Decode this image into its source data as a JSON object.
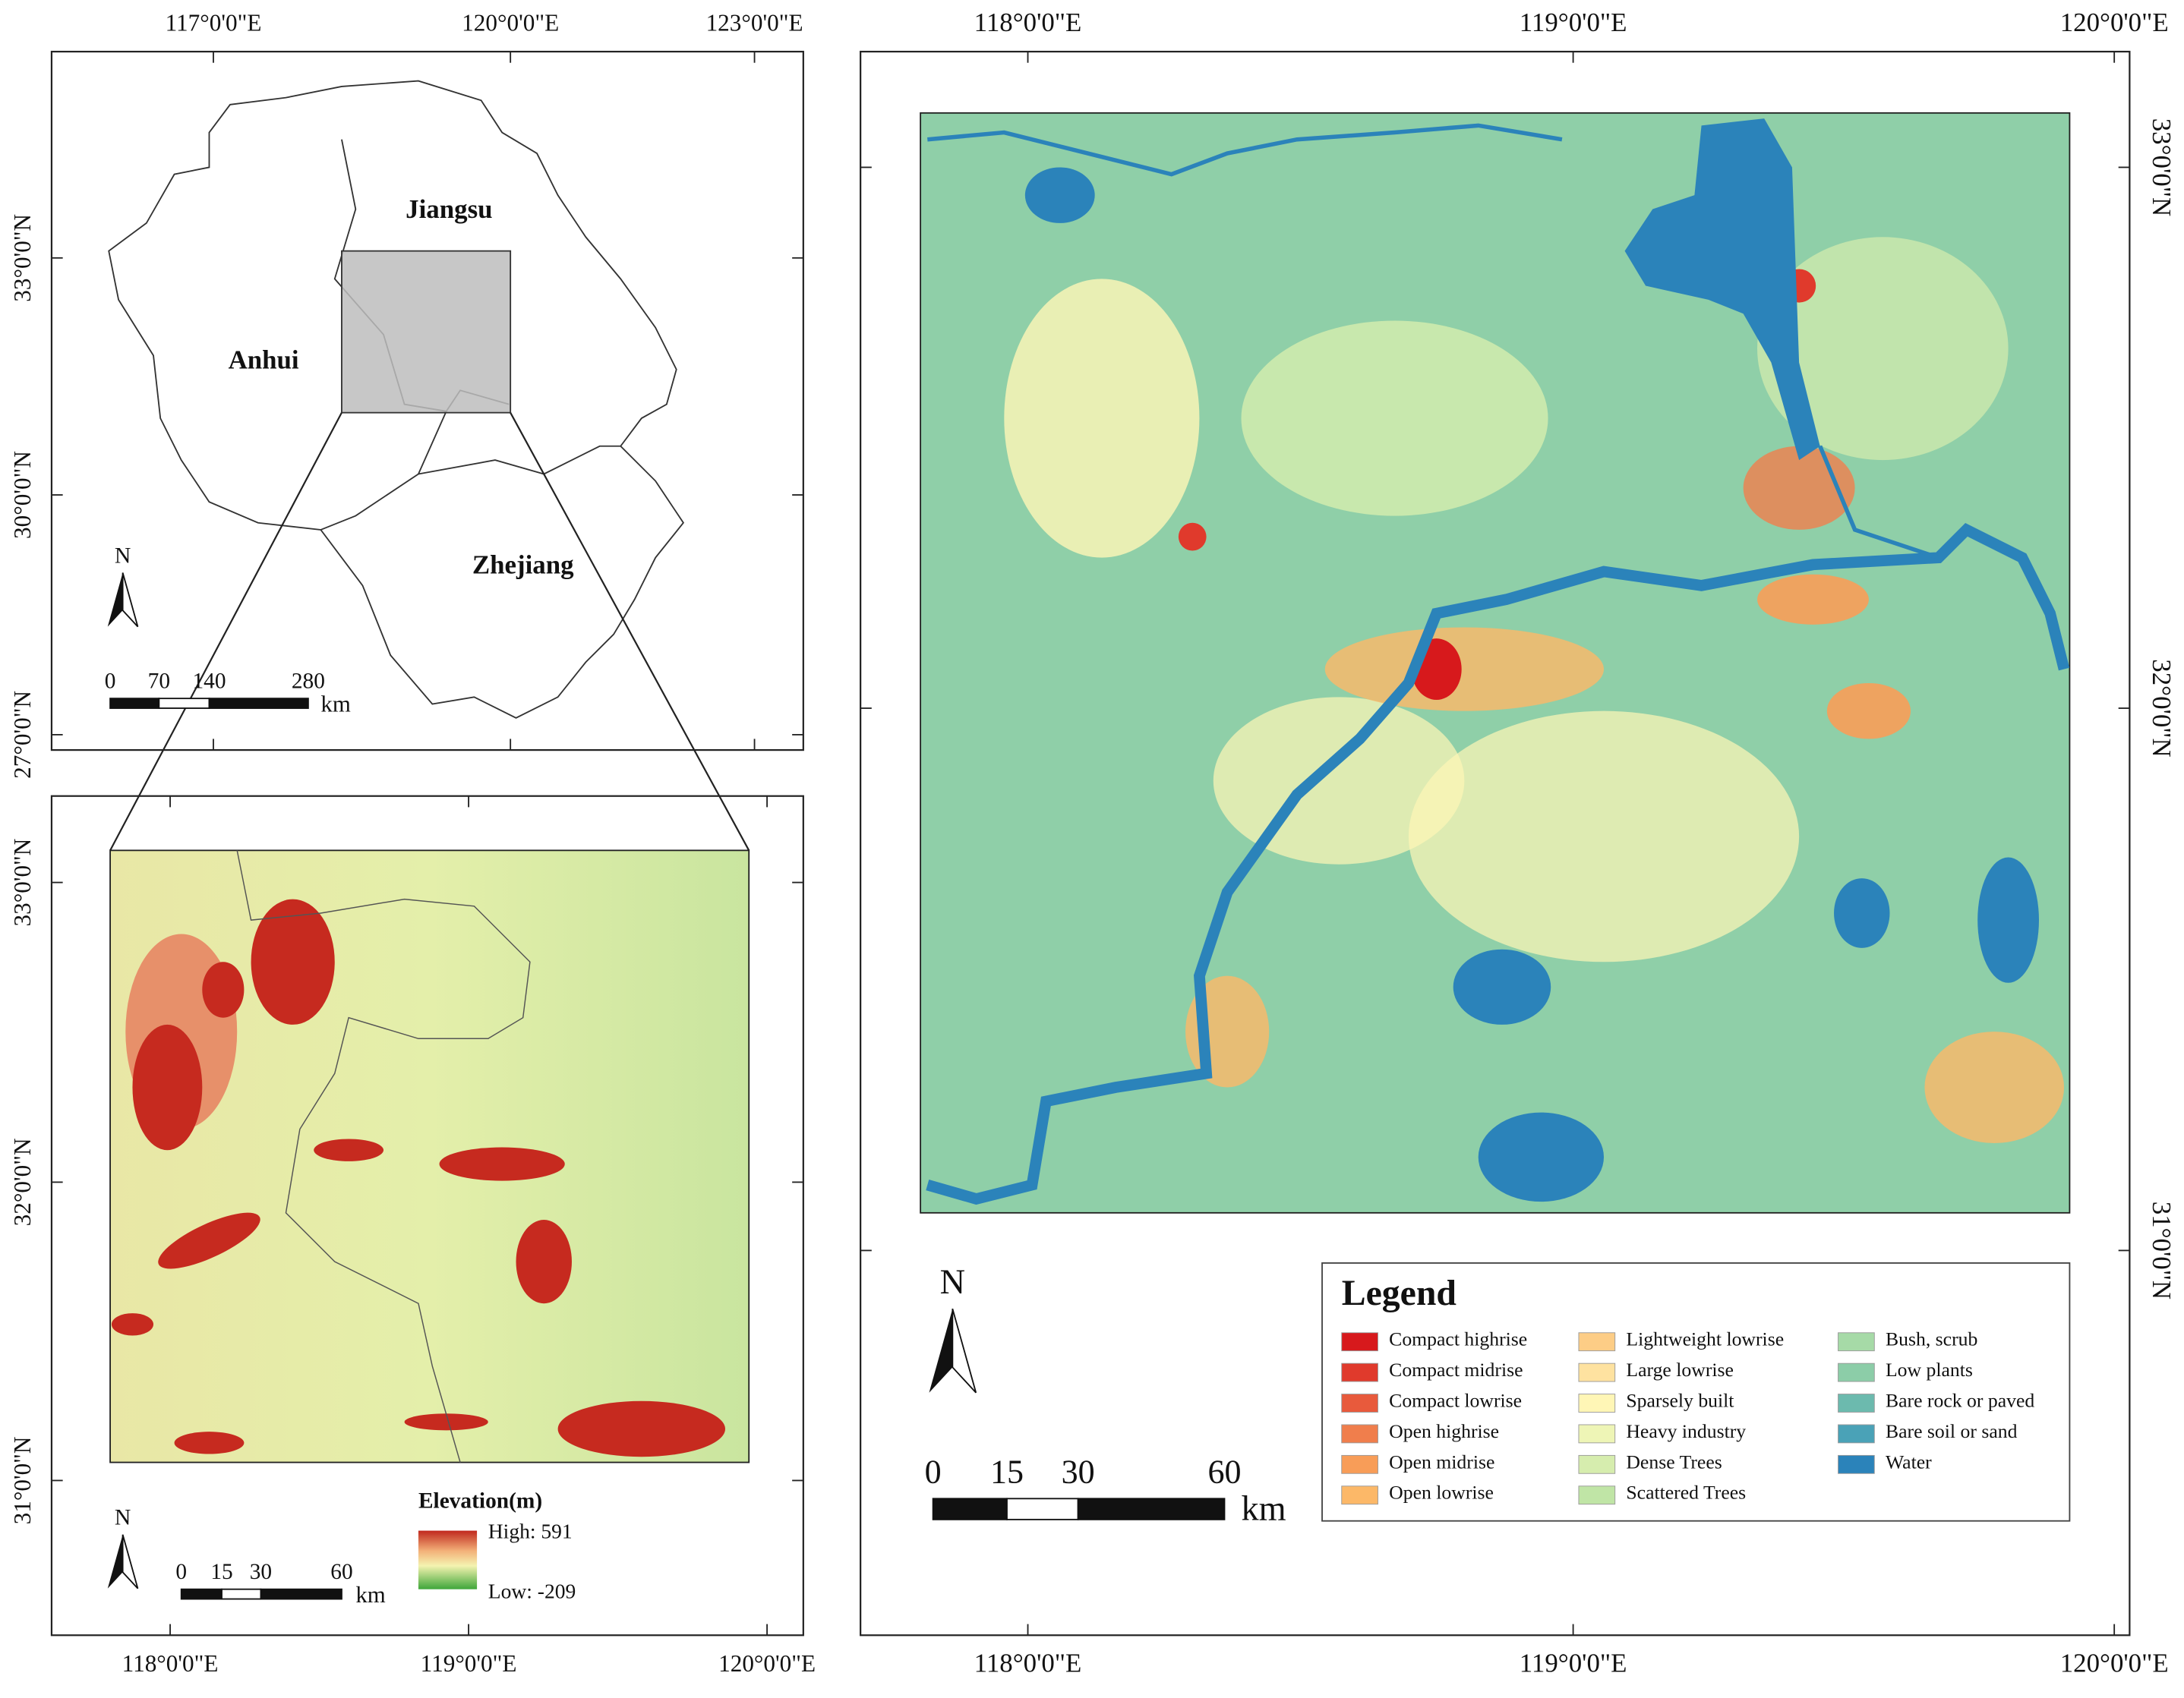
{
  "overview_map": {
    "x_labels": [
      "117°0'0\"E",
      "120°0'0\"E",
      "123°0'0\"E"
    ],
    "y_labels": [
      "33°0'0\"N",
      "30°0'0\"N",
      "27°0'0\"N"
    ],
    "regions": [
      "Jiangsu",
      "Anhui",
      "Zhejiang"
    ],
    "north": "N",
    "scale_labels": [
      "0",
      "70",
      "140",
      "280"
    ],
    "scale_unit": "km"
  },
  "elevation_map": {
    "x_labels": [
      "118°0'0\"E",
      "119°0'0\"E",
      "120°0'0\"E"
    ],
    "y_labels": [
      "33°0'0\"N",
      "32°0'0\"N",
      "31°0'0\"N"
    ],
    "north": "N",
    "scale_labels": [
      "0",
      "15",
      "30",
      "60"
    ],
    "scale_unit": "km",
    "legend_title": "Elevation(m)",
    "high_label": "High: 591",
    "low_label": "Low: -209"
  },
  "lcz_map": {
    "x_labels": [
      "118°0'0\"E",
      "119°0'0\"E",
      "120°0'0\"E"
    ],
    "y_labels": [
      "33°0'0\"N",
      "32°0'0\"N",
      "31°0'0\"N"
    ],
    "north": "N",
    "scale_labels": [
      "0",
      "15",
      "30",
      "60"
    ],
    "scale_unit": "km",
    "legend_title": "Legend",
    "legend_items": [
      {
        "label": "Compact highrise",
        "color": "#d7191c"
      },
      {
        "label": "Compact midrise",
        "color": "#e03a2c"
      },
      {
        "label": "Compact lowrise",
        "color": "#e85a3c"
      },
      {
        "label": "Open highrise",
        "color": "#f07e4c"
      },
      {
        "label": "Open midrise",
        "color": "#f89d58"
      },
      {
        "label": "Open lowrise",
        "color": "#fcb868"
      },
      {
        "label": "Lightweight lowrise",
        "color": "#fdcd86"
      },
      {
        "label": "Large lowrise",
        "color": "#fee2a0"
      },
      {
        "label": "Sparsely built",
        "color": "#fff6b6"
      },
      {
        "label": "Heavy industry",
        "color": "#eef5b6"
      },
      {
        "label": "Dense Trees",
        "color": "#d6edae"
      },
      {
        "label": "Scattered Trees",
        "color": "#c0e5a6"
      },
      {
        "label": "Bush, scrub",
        "color": "#a6daa7"
      },
      {
        "label": "Low plants",
        "color": "#8ccda8"
      },
      {
        "label": "Bare rock or paved",
        "color": "#6cbaae"
      },
      {
        "label": "Bare soil or sand",
        "color": "#4aa2b7"
      },
      {
        "label": "Water",
        "color": "#2b83ba"
      }
    ]
  }
}
